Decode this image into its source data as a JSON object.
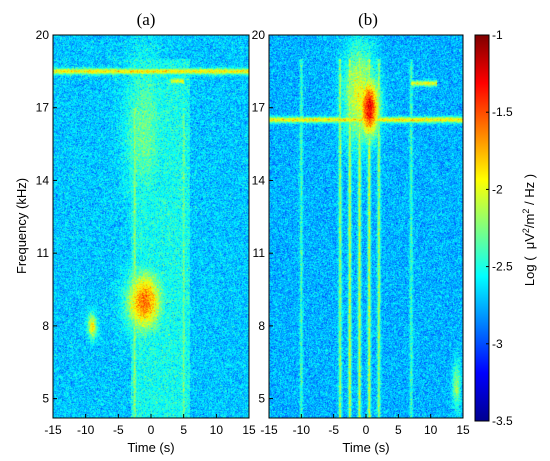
{
  "chart_data": {
    "type": "heatmap",
    "panels": [
      {
        "title": "(a)",
        "xlabel": "Time (s)",
        "ylabel": "Frequency (kHz)",
        "xlim": [
          -15,
          15
        ],
        "ylim": [
          4.2,
          20
        ],
        "xticks": [
          "-15",
          "-10",
          "-5",
          "0",
          "5",
          "10",
          "15"
        ],
        "xtick_values": [
          -15,
          -10,
          -5,
          0,
          5,
          10,
          15
        ],
        "yticks": [
          "5",
          "8",
          "11",
          "14",
          "17",
          "20"
        ],
        "ytick_values": [
          5,
          8,
          11,
          14,
          17,
          20
        ],
        "background_level": -2.7,
        "features": [
          {
            "kind": "blob",
            "t": -1,
            "f": 9.0,
            "dt": 2.6,
            "df": 1.2,
            "level": -1.6
          },
          {
            "kind": "blob",
            "t": -9,
            "f": 8.0,
            "dt": 0.7,
            "df": 0.5,
            "level": -1.9
          },
          {
            "kind": "blob",
            "t": -1,
            "f": 16.0,
            "dt": 3.0,
            "df": 3.0,
            "level": -2.3
          },
          {
            "kind": "band",
            "t0": -3,
            "t1": 6,
            "f0": 4.2,
            "f1": 19,
            "level": -2.4
          },
          {
            "kind": "hline",
            "t0": -15,
            "t1": 15,
            "f": 18.5,
            "level": -1.9
          },
          {
            "kind": "hline",
            "t0": 3,
            "t1": 5,
            "f": 18.1,
            "level": -2.0
          },
          {
            "kind": "vline",
            "t": -2.5,
            "f0": 4.2,
            "f1": 17,
            "level": -2.2
          },
          {
            "kind": "vline",
            "t": 5,
            "f0": 4.2,
            "f1": 17,
            "level": -2.3
          }
        ]
      },
      {
        "title": "(b)",
        "xlabel": "Time (s)",
        "ylabel": "",
        "xlim": [
          -15,
          15
        ],
        "ylim": [
          4.2,
          20
        ],
        "xticks": [
          "-15",
          "-10",
          "-5",
          "0",
          "5",
          "10",
          "15"
        ],
        "xtick_values": [
          -15,
          -10,
          -5,
          0,
          5,
          10,
          15
        ],
        "yticks": [
          "5",
          "8",
          "11",
          "14",
          "17",
          "20"
        ],
        "ytick_values": [
          5,
          8,
          11,
          14,
          17,
          20
        ],
        "background_level": -2.75,
        "features": [
          {
            "kind": "blob",
            "t": 0.5,
            "f": 17.0,
            "dt": 1.5,
            "df": 1.2,
            "level": -1.3
          },
          {
            "kind": "blob",
            "t": -1,
            "f": 17.5,
            "dt": 2.5,
            "df": 2.0,
            "level": -2.0
          },
          {
            "kind": "hline",
            "t0": -15,
            "t1": 15,
            "f": 16.5,
            "level": -1.9
          },
          {
            "kind": "hline",
            "t0": 7,
            "t1": 11,
            "f": 18.0,
            "level": -2.0
          },
          {
            "kind": "vline",
            "t": -4,
            "f0": 4.2,
            "f1": 19,
            "level": -2.2
          },
          {
            "kind": "vline",
            "t": -2.5,
            "f0": 4.2,
            "f1": 19,
            "level": -2.1
          },
          {
            "kind": "vline",
            "t": -1,
            "f0": 4.2,
            "f1": 19,
            "level": -2.1
          },
          {
            "kind": "vline",
            "t": 0.5,
            "f0": 4.2,
            "f1": 19,
            "level": -2.1
          },
          {
            "kind": "vline",
            "t": 2,
            "f0": 4.2,
            "f1": 19,
            "level": -2.2
          },
          {
            "kind": "vline",
            "t": 7,
            "f0": 4.2,
            "f1": 19,
            "level": -2.4
          },
          {
            "kind": "vline",
            "t": -10,
            "f0": 4.2,
            "f1": 19,
            "level": -2.4
          },
          {
            "kind": "blob",
            "t": 14,
            "f": 5.5,
            "dt": 0.6,
            "df": 1.0,
            "level": -2.2
          }
        ]
      }
    ],
    "colorbar": {
      "label": "Log ( μV²/m² / Hz )",
      "label_parts": {
        "pre": "Log (  μV",
        "sup1": "2",
        "mid": "/m",
        "sup2": "2",
        "post": " / Hz )"
      },
      "range": [
        -3.5,
        -1
      ],
      "ticks": [
        "-1",
        "-1.5",
        "-2",
        "-2.5",
        "-3",
        "-3.5"
      ],
      "tick_values": [
        -1,
        -1.5,
        -2,
        -2.5,
        -3,
        -3.5
      ],
      "colormap": "jet"
    }
  }
}
